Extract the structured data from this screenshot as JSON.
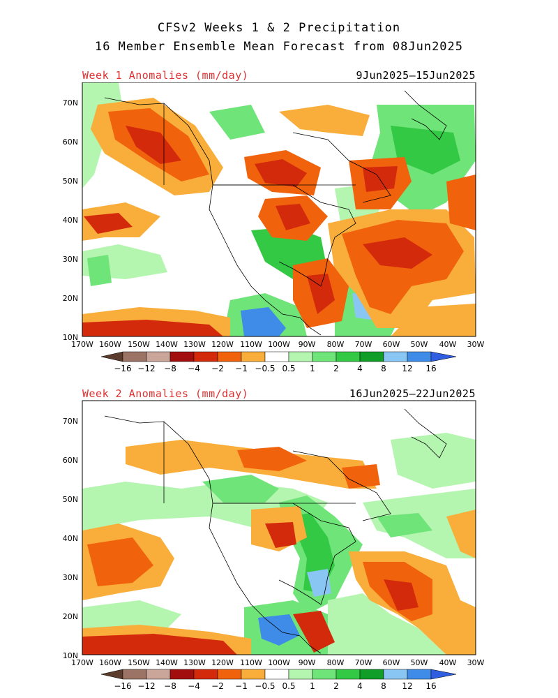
{
  "header": {
    "line1": "CFSv2 Weeks 1 & 2 Precipitation",
    "line2": "16 Member Ensemble Mean Forecast from 08Jun2025"
  },
  "panels": [
    {
      "title": "Week 1 Anomalies (mm/day)",
      "dates": "9Jun2025–15Jun2025"
    },
    {
      "title": "Week 2 Anomalies (mm/day)",
      "dates": "16Jun2025–22Jun2025"
    }
  ],
  "axes": {
    "lon_labels": [
      "170W",
      "160W",
      "150W",
      "140W",
      "130W",
      "120W",
      "110W",
      "100W",
      "90W",
      "80W",
      "70W",
      "60W",
      "50W",
      "40W",
      "30W"
    ],
    "lat_labels": [
      "70N",
      "60N",
      "50N",
      "40N",
      "30N",
      "20N",
      "10N"
    ]
  },
  "colorbar": {
    "labels": [
      "−16",
      "−12",
      "−8",
      "−4",
      "−2",
      "−1",
      "−0.5",
      "0.5",
      "1",
      "2",
      "4",
      "8",
      "12",
      "16"
    ],
    "colors": [
      "#5a3b2c",
      "#9b7466",
      "#c9a59a",
      "#a20d0d",
      "#d42a0c",
      "#f0620c",
      "#f9ae3b",
      "#ffffff",
      "#b4f5b0",
      "#6fe478",
      "#33c944",
      "#119e28",
      "#8ac6f3",
      "#3f8ce8",
      "#2f5ee0"
    ]
  },
  "colors": {
    "title_red": "#e03030"
  }
}
